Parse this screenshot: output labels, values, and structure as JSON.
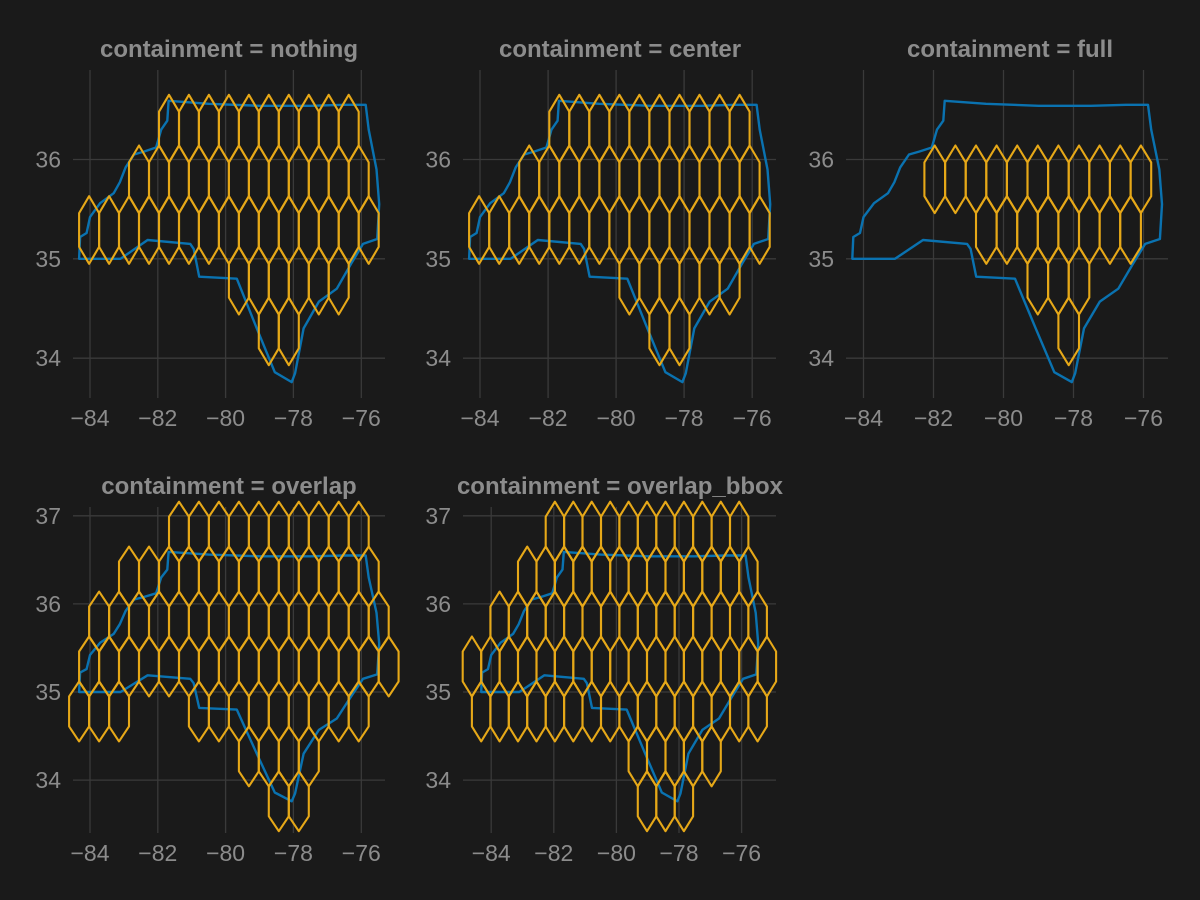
{
  "colors": {
    "background": "#1a1a1a",
    "text": "#8c8c8c",
    "grid": "#3a3a3a",
    "outline": "#0a72b0",
    "hexagon": "#e6a818"
  },
  "chart_data": [
    {
      "type": "map",
      "title": "containment = nothing",
      "x_ticks": [
        -84,
        -82,
        -80,
        -78,
        -76
      ],
      "y_ticks": [
        34,
        35,
        36
      ],
      "xlim": [
        -84.5,
        -75.3
      ],
      "ylim": [
        33.6,
        36.9
      ],
      "series": [
        {
          "name": "",
          "kind": "outline",
          "containment": "nothing"
        },
        {
          "name": "",
          "kind": "hexagons",
          "containment": "nothing"
        }
      ]
    },
    {
      "type": "map",
      "title": "containment = center",
      "x_ticks": [
        -84,
        -82,
        -80,
        -78,
        -76
      ],
      "y_ticks": [
        34,
        35,
        36
      ],
      "xlim": [
        -84.5,
        -75.3
      ],
      "ylim": [
        33.6,
        36.9
      ],
      "series": [
        {
          "name": "",
          "kind": "outline",
          "containment": "center"
        },
        {
          "name": "",
          "kind": "hexagons",
          "containment": "center"
        }
      ]
    },
    {
      "type": "map",
      "title": "containment = full",
      "x_ticks": [
        -84,
        -82,
        -80,
        -78,
        -76
      ],
      "y_ticks": [
        34,
        35,
        36
      ],
      "xlim": [
        -84.5,
        -75.3
      ],
      "ylim": [
        33.6,
        36.9
      ],
      "series": [
        {
          "name": "",
          "kind": "outline",
          "containment": "full"
        },
        {
          "name": "",
          "kind": "hexagons",
          "containment": "full"
        }
      ]
    },
    {
      "type": "map",
      "title": "containment = overlap",
      "x_ticks": [
        -84,
        -82,
        -80,
        -78,
        -76
      ],
      "y_ticks": [
        34,
        35,
        36,
        37
      ],
      "xlim": [
        -84.5,
        -75.3
      ],
      "ylim": [
        33.4,
        37.1
      ],
      "series": [
        {
          "name": "",
          "kind": "outline",
          "containment": "overlap"
        },
        {
          "name": "",
          "kind": "hexagons",
          "containment": "overlap"
        }
      ]
    },
    {
      "type": "map",
      "title": "containment = overlap_bbox",
      "x_ticks": [
        -84,
        -82,
        -80,
        -78,
        -76
      ],
      "y_ticks": [
        34,
        35,
        36,
        37
      ],
      "xlim": [
        -84.9,
        -74.9
      ],
      "ylim": [
        33.4,
        37.1
      ],
      "series": [
        {
          "name": "",
          "kind": "outline",
          "containment": "overlap_bbox"
        },
        {
          "name": "",
          "kind": "hexagons",
          "containment": "overlap_bbox"
        }
      ]
    }
  ]
}
